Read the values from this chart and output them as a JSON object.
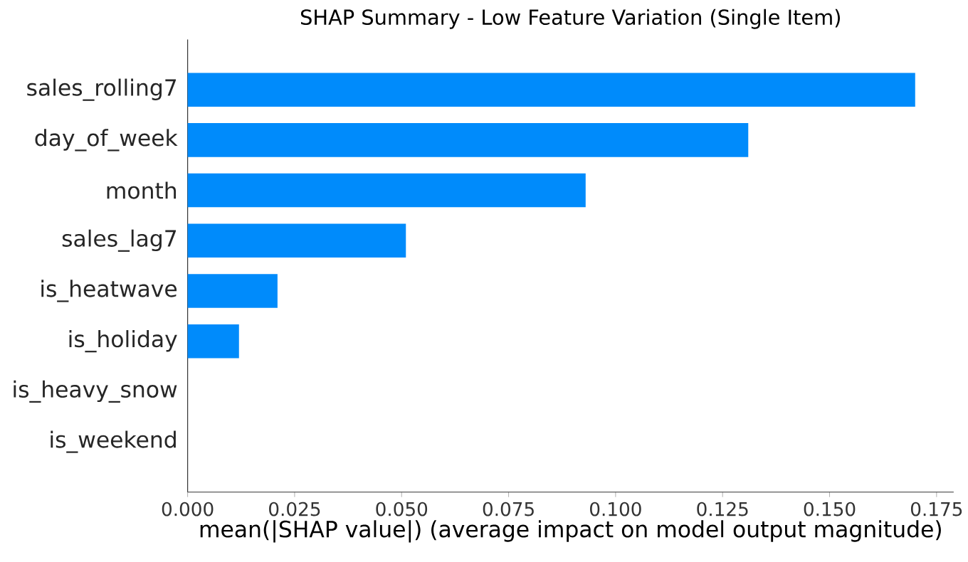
{
  "chart_data": {
    "type": "bar",
    "orientation": "horizontal",
    "title": "SHAP Summary - Low Feature Variation (Single Item)",
    "xlabel": "mean(|SHAP value|) (average impact on model output magnitude)",
    "categories": [
      "sales_rolling7",
      "day_of_week",
      "month",
      "sales_lag7",
      "is_heatwave",
      "is_holiday",
      "is_heavy_snow",
      "is_weekend"
    ],
    "values": [
      0.17,
      0.131,
      0.093,
      0.051,
      0.021,
      0.012,
      0,
      0
    ],
    "color": "#008bfb",
    "xlim": [
      0,
      0.179
    ],
    "xticks": [
      {
        "value": 0,
        "label": "0.000"
      },
      {
        "value": 0.025,
        "label": "0.025"
      },
      {
        "value": 0.05,
        "label": "0.050"
      },
      {
        "value": 0.075,
        "label": "0.075"
      },
      {
        "value": 0.1,
        "label": "0.100"
      },
      {
        "value": 0.125,
        "label": "0.125"
      },
      {
        "value": 0.15,
        "label": "0.150"
      },
      {
        "value": 0.175,
        "label": "0.175"
      }
    ],
    "grid": false
  }
}
